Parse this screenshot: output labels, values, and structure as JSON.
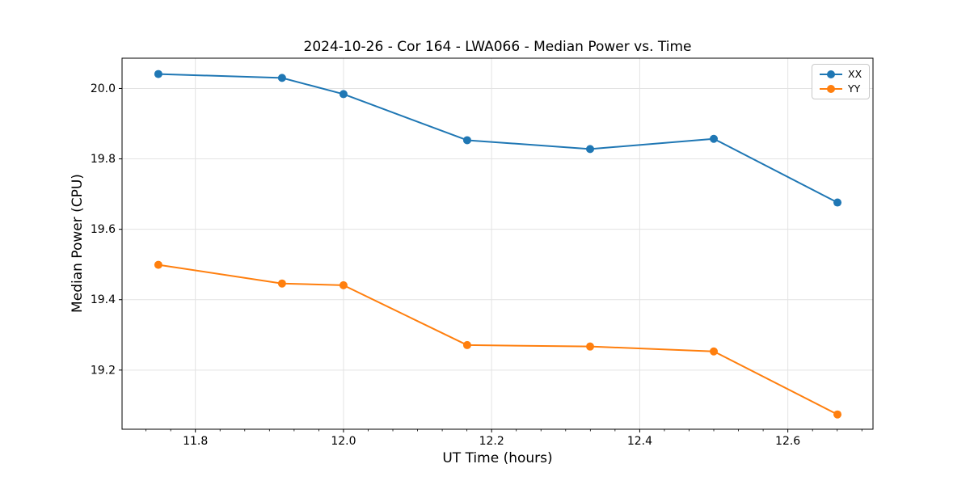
{
  "figure_title": "2024-10-26 - Cor 164 - LWA066 - Median Power vs. Time",
  "chart_data": {
    "type": "line",
    "title": "2024-10-26 - Cor 164 - LWA066 - Median Power vs. Time",
    "xlabel": "UT Time (hours)",
    "ylabel": "Median Power (CPU)",
    "xlim": [
      11.701,
      12.715
    ],
    "ylim": [
      19.032,
      20.086
    ],
    "xticks": [
      11.8,
      12.0,
      12.2,
      12.4,
      12.6
    ],
    "yticks": [
      19.2,
      19.4,
      19.6,
      19.8,
      20.0
    ],
    "x_minor_step": 0.0333333,
    "grid": true,
    "legend_position": "upper right",
    "x": [
      11.75,
      11.917,
      12.0,
      12.167,
      12.333,
      12.5,
      12.667
    ],
    "series": [
      {
        "name": "XX",
        "color": "#1f77b4",
        "values": [
          20.041,
          20.03,
          19.984,
          19.853,
          19.828,
          19.857,
          19.676
        ]
      },
      {
        "name": "YY",
        "color": "#ff7f0e",
        "values": [
          19.499,
          19.446,
          19.441,
          19.271,
          19.267,
          19.253,
          19.074
        ]
      }
    ],
    "colors": {
      "grid": "#e3e3e3",
      "spine": "#000000",
      "tick_text": "#000000"
    }
  }
}
